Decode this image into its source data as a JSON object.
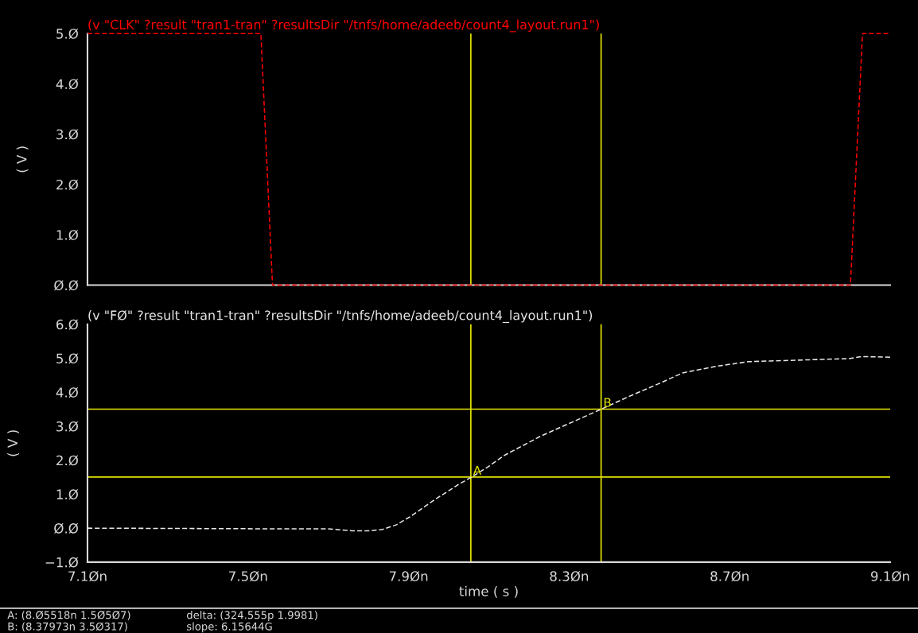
{
  "chart_data": [
    {
      "type": "line",
      "title": "(v \"CLK\" ?result \"tran1-tran\" ?resultsDir \"/tnfs/home/adeeb/count4_layout.run1\")",
      "ylabel": "( V )",
      "series": [
        {
          "color": "#ff0000",
          "x": [
            7.1,
            7.532,
            7.561,
            9.001,
            9.031,
            9.1
          ],
          "values": [
            5,
            5,
            0,
            0,
            5,
            5
          ]
        }
      ],
      "xlim": [
        7.1,
        9.1
      ],
      "xticks": [
        {
          "value": 7.1,
          "label": null
        },
        {
          "value": 7.5,
          "label": null
        },
        {
          "value": 7.9,
          "label": null
        },
        {
          "value": 8.3,
          "label": null
        },
        {
          "value": 8.7,
          "label": null
        },
        {
          "value": 9.1,
          "label": null
        }
      ],
      "ylim": [
        0,
        5
      ],
      "yticks": [
        {
          "value": 0,
          "label": "Ø.Ø"
        },
        {
          "value": 1,
          "label": "1.Ø"
        },
        {
          "value": 2,
          "label": "2.Ø"
        },
        {
          "value": 3,
          "label": "3.Ø"
        },
        {
          "value": 4,
          "label": "4.Ø"
        },
        {
          "value": 5,
          "label": "5.Ø"
        }
      ],
      "tick_labels": "y",
      "line_style": "dashed",
      "grid": false,
      "legend": false,
      "ref_lines": [
        {
          "axis": "x",
          "value": 8.05518,
          "color": "#e6e600"
        },
        {
          "axis": "x",
          "value": 8.37973,
          "color": "#e6e600"
        }
      ]
    },
    {
      "type": "line",
      "title": "(v \"FØ\" ?result \"tran1-tran\" ?resultsDir \"/tnfs/home/adeeb/count4_layout.run1\")",
      "ylabel": "( V )",
      "xlabel": "time ( s )",
      "series": [
        {
          "color": "#e8e8e8",
          "x": [
            7.1,
            7.56,
            7.7,
            7.76,
            7.8,
            7.835,
            7.87,
            7.903,
            7.968,
            8.028,
            8.057,
            8.1,
            8.14,
            8.228,
            8.3,
            8.38,
            8.45,
            8.525,
            8.583,
            8.67,
            8.747,
            8.8,
            8.997,
            9.03,
            9.1
          ],
          "values": [
            0.0,
            -0.02,
            -0.02,
            -0.08,
            -0.08,
            -0.04,
            0.1,
            0.33,
            0.86,
            1.31,
            1.5,
            1.82,
            2.15,
            2.7,
            3.08,
            3.5,
            3.88,
            4.26,
            4.57,
            4.77,
            4.9,
            4.92,
            4.99,
            5.05,
            5.03
          ]
        }
      ],
      "xlim": [
        7.1,
        9.1
      ],
      "xticks": [
        {
          "value": 7.1,
          "label": "7.1Øn"
        },
        {
          "value": 7.5,
          "label": "7.5Øn"
        },
        {
          "value": 7.9,
          "label": "7.9Øn"
        },
        {
          "value": 8.3,
          "label": "8.3Øn"
        },
        {
          "value": 8.7,
          "label": "8.7Øn"
        },
        {
          "value": 9.1,
          "label": "9.1Øn"
        }
      ],
      "ylim": [
        -1,
        6
      ],
      "yticks": [
        {
          "value": -1,
          "label": "−1.Ø"
        },
        {
          "value": 0,
          "label": "Ø.Ø"
        },
        {
          "value": 1,
          "label": "1.Ø"
        },
        {
          "value": 2,
          "label": "2.Ø"
        },
        {
          "value": 3,
          "label": "3.Ø"
        },
        {
          "value": 4,
          "label": "4.Ø"
        },
        {
          "value": 5,
          "label": "5.Ø"
        },
        {
          "value": 6,
          "label": "6.Ø"
        }
      ],
      "line_style": "dashed",
      "grid": false,
      "legend": false,
      "ref_lines": [
        {
          "axis": "x",
          "value": 8.05518,
          "color": "#e6e600"
        },
        {
          "axis": "x",
          "value": 8.37973,
          "color": "#e6e600"
        },
        {
          "axis": "y",
          "value": 1.50507,
          "color": "#e6e600"
        },
        {
          "axis": "y",
          "value": 3.50317,
          "color": "#e6e600"
        }
      ],
      "annotations": [
        {
          "text": "A",
          "x": 8.05518,
          "y": 1.50507
        },
        {
          "text": "B",
          "x": 8.37973,
          "y": 3.50317
        },
        "A: (8.Ø5518n 1.5Ø5Ø7)",
        "B: (8.37973n 3.5Ø317)",
        "delta: (324.555p 1.9981)",
        "slope: 6.15644G"
      ]
    }
  ]
}
